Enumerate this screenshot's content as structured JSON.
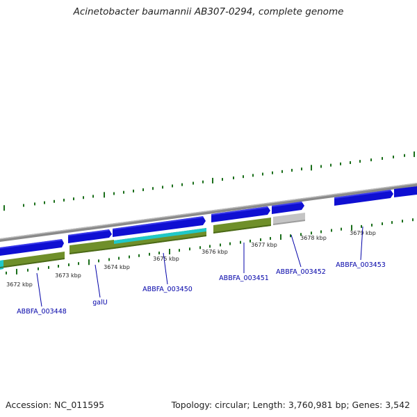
{
  "title": "Acinetobacter baumannii AB307-0294, complete genome",
  "footer": {
    "accession": "Accession: NC_011595",
    "summary": "Topology: circular; Length: 3,760,981 bp; Genes: 3,542"
  },
  "colors": {
    "backbone": "#8a8a8a",
    "gene_forward": "#0f0fd2",
    "cds": "#6f8f2a",
    "cds_highlight": "#20c8c8",
    "pseudo": "#c4c4c4",
    "gc_marks": "#1a6e1a",
    "label": "#0000a8"
  },
  "ticks": [
    {
      "label": "3672 kbp"
    },
    {
      "label": "3673 kbp"
    },
    {
      "label": "3674 kbp"
    },
    {
      "label": "3675 kbp"
    },
    {
      "label": "3676 kbp"
    },
    {
      "label": "3677 kbp"
    },
    {
      "label": "3678 kbp"
    },
    {
      "label": "3679 kbp"
    }
  ],
  "gene_labels": [
    {
      "label": "ABBFA_003448"
    },
    {
      "label": "galU"
    },
    {
      "label": "ABBFA_003450"
    },
    {
      "label": "ABBFA_003451"
    },
    {
      "label": "ABBFA_003452"
    },
    {
      "label": "ABBFA_003453"
    }
  ]
}
